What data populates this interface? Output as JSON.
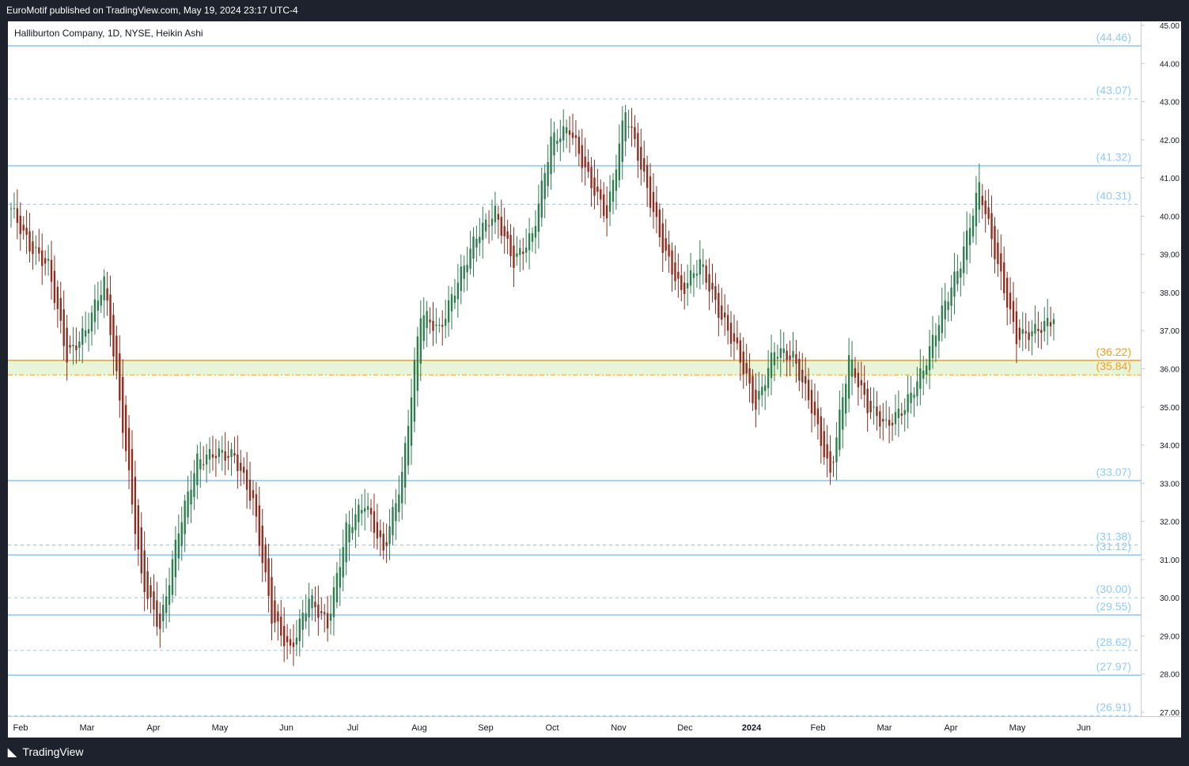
{
  "header": {
    "published": "EuroMotif published on TradingView.com, May 19, 2024 23:17 UTC-4"
  },
  "legend": {
    "symbol": "Halliburton Company, 1D, NYSE, Heikin Ashi"
  },
  "footer": {
    "brand": "TradingView"
  },
  "colors": {
    "up": "#26a69a",
    "up_candle": "#2e7d4f",
    "down_candle": "#8b2d1f",
    "solid_level": "#90caf9",
    "dashed_level": "#90caf9",
    "level_label": "#90caf9",
    "orange_level": "#f59d1a",
    "zone_fill": "#e8f5d8"
  },
  "chart_data": {
    "type": "candlestick",
    "title": "Halliburton Company, 1D, NYSE, Heikin Ashi",
    "ylim": [
      27.0,
      45.0
    ],
    "y_ticks": [
      "45.00",
      "44.00",
      "43.00",
      "42.00",
      "41.00",
      "40.00",
      "39.00",
      "38.00",
      "37.00",
      "36.00",
      "35.00",
      "34.00",
      "33.00",
      "32.00",
      "31.00",
      "30.00",
      "29.00",
      "28.00",
      "27.00"
    ],
    "x_ticks": [
      "Feb",
      "Mar",
      "Apr",
      "May",
      "Jun",
      "Jul",
      "Aug",
      "Sep",
      "Oct",
      "Nov",
      "Dec",
      "2024",
      "Feb",
      "Mar",
      "Apr",
      "May",
      "Jun"
    ],
    "levels": [
      {
        "label": "(44.46)",
        "value": 44.46,
        "style": "solid",
        "color": "#90caf9"
      },
      {
        "label": "(43.07)",
        "value": 43.07,
        "style": "dashed",
        "color": "#90caf9"
      },
      {
        "label": "(41.32)",
        "value": 41.32,
        "style": "solid",
        "color": "#90caf9"
      },
      {
        "label": "(40.31)",
        "value": 40.31,
        "style": "dashed",
        "color": "#90caf9"
      },
      {
        "label": "(36.22)",
        "value": 36.22,
        "style": "solid",
        "color": "#f59d1a"
      },
      {
        "label": "(35.84)",
        "value": 35.84,
        "style": "dashdot",
        "color": "#f59d1a"
      },
      {
        "label": "(33.07)",
        "value": 33.07,
        "style": "solid",
        "color": "#90caf9"
      },
      {
        "label": "(31.38)",
        "value": 31.38,
        "style": "dashed",
        "color": "#90caf9"
      },
      {
        "label": "(31.12)",
        "value": 31.12,
        "style": "solid",
        "color": "#90caf9"
      },
      {
        "label": "(30.00)",
        "value": 30.0,
        "style": "dashed",
        "color": "#90caf9"
      },
      {
        "label": "(29.55)",
        "value": 29.55,
        "style": "solid",
        "color": "#90caf9"
      },
      {
        "label": "(28.62)",
        "value": 28.62,
        "style": "dashed",
        "color": "#90caf9"
      },
      {
        "label": "(27.97)",
        "value": 27.97,
        "style": "solid",
        "color": "#90caf9"
      },
      {
        "label": "(26.91)",
        "value": 26.91,
        "style": "dashed",
        "color": "#90caf9"
      }
    ],
    "zone": {
      "from": 35.84,
      "to": 36.22
    },
    "close_path": [
      [
        "Feb",
        40.2
      ],
      [
        "Feb",
        39.2
      ],
      [
        "Feb",
        38.7
      ],
      [
        "Feb",
        36.3
      ],
      [
        "Mar",
        37.0
      ],
      [
        "Mar",
        38.3
      ],
      [
        "Mar",
        34.5
      ],
      [
        "Mar",
        30.5
      ],
      [
        "Mar",
        29.2
      ],
      [
        "Apr",
        31.8
      ],
      [
        "Apr",
        33.6
      ],
      [
        "Apr",
        33.8
      ],
      [
        "May",
        33.7
      ],
      [
        "May",
        32.5
      ],
      [
        "May",
        29.5
      ],
      [
        "May",
        28.6
      ],
      [
        "Jun",
        30.0
      ],
      [
        "Jun",
        29.3
      ],
      [
        "Jun",
        31.8
      ],
      [
        "Jun",
        32.5
      ],
      [
        "Jul",
        31.2
      ],
      [
        "Jul",
        33.2
      ],
      [
        "Jul",
        37.5
      ],
      [
        "Jul",
        37.0
      ],
      [
        "Aug",
        38.3
      ],
      [
        "Aug",
        39.5
      ],
      [
        "Aug",
        40.1
      ],
      [
        "Aug",
        38.8
      ],
      [
        "Sep",
        39.5
      ],
      [
        "Sep",
        42.0
      ],
      [
        "Sep",
        42.3
      ],
      [
        "Oct",
        41.0
      ],
      [
        "Oct",
        40.0
      ],
      [
        "Oct",
        42.8
      ],
      [
        "Oct",
        41.0
      ],
      [
        "Nov",
        39.2
      ],
      [
        "Nov",
        38.0
      ],
      [
        "Nov",
        38.8
      ],
      [
        "Nov",
        37.5
      ],
      [
        "Dec",
        36.5
      ],
      [
        "Dec",
        35.0
      ],
      [
        "Dec",
        36.5
      ],
      [
        "2024",
        36.3
      ],
      [
        "2024",
        35.0
      ],
      [
        "2024",
        33.2
      ],
      [
        "Feb",
        36.3
      ],
      [
        "Feb",
        35.0
      ],
      [
        "Feb",
        34.5
      ],
      [
        "Mar",
        35.0
      ],
      [
        "Mar",
        36.0
      ],
      [
        "Mar",
        37.5
      ],
      [
        "Apr",
        38.8
      ],
      [
        "Apr",
        40.8
      ],
      [
        "Apr",
        38.7
      ],
      [
        "May",
        36.8
      ],
      [
        "May",
        37.0
      ],
      [
        "May",
        37.3
      ]
    ]
  }
}
